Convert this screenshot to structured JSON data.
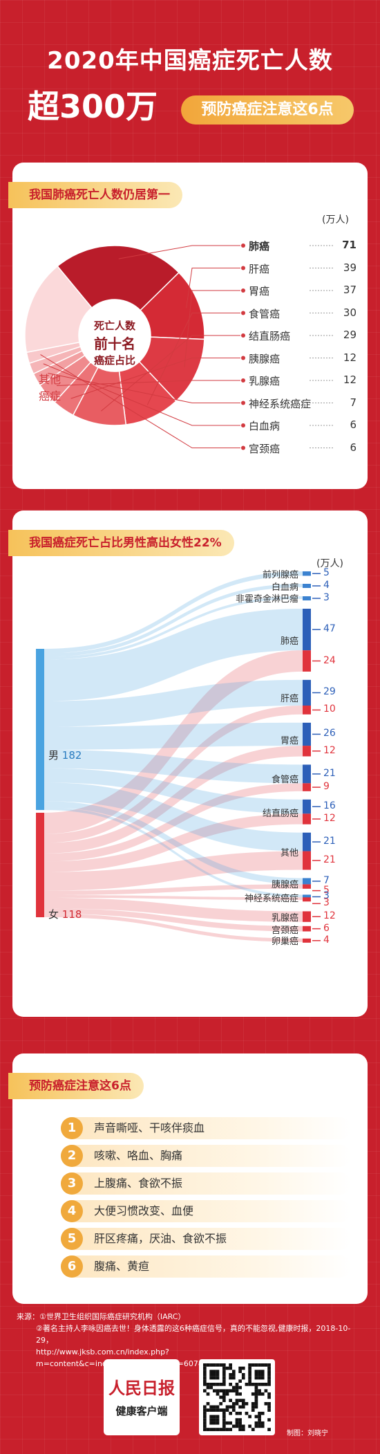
{
  "header": {
    "line1": "2020年中国癌症死亡人数",
    "line2": "超300万",
    "pill": "预防癌症注意这6点"
  },
  "section1": {
    "title": "我国肺癌死亡人数仍居第一",
    "unit": "(万人)",
    "center_lines": [
      "死亡人数",
      "前十名",
      "癌症占比"
    ],
    "other_label": [
      "其他",
      "癌症"
    ],
    "items": [
      {
        "name": "肺癌",
        "value": "71",
        "color": "#b91c2a"
      },
      {
        "name": "肝癌",
        "value": "39",
        "color": "#d42a35"
      },
      {
        "name": "胃癌",
        "value": "37",
        "color": "#dd3a44"
      },
      {
        "name": "食管癌",
        "value": "30",
        "color": "#e5474f"
      },
      {
        "name": "结直肠癌",
        "value": "29",
        "color": "#e85d62"
      },
      {
        "name": "胰腺癌",
        "value": "12",
        "color": "#ec7377"
      },
      {
        "name": "乳腺癌",
        "value": "12",
        "color": "#ef8a8d"
      },
      {
        "name": "神经系统癌症",
        "value": "7",
        "color": "#f2a0a2"
      },
      {
        "name": "白血病",
        "value": "6",
        "color": "#f5b5b7"
      },
      {
        "name": "宫颈癌",
        "value": "6",
        "color": "#f8c8ca"
      }
    ],
    "other_color": "#fbd9da"
  },
  "section2": {
    "title": "我国癌症死亡占比男性高出女性22%",
    "unit": "(万人)",
    "male_label": "男",
    "male_value": "182",
    "female_label": "女",
    "female_value": "118",
    "male_color": "#4aa3e0",
    "female_color": "#e0333c",
    "targets": [
      {
        "name": "前列腺癌",
        "male": "5",
        "female": ""
      },
      {
        "name": "白血病",
        "male": "4",
        "female": ""
      },
      {
        "name": "非霍奇金淋巴瘤",
        "male": "3",
        "female": ""
      },
      {
        "name": "肺癌",
        "male": "47",
        "female": "24"
      },
      {
        "name": "肝癌",
        "male": "29",
        "female": "10"
      },
      {
        "name": "胃癌",
        "male": "26",
        "female": "12"
      },
      {
        "name": "食管癌",
        "male": "21",
        "female": "9"
      },
      {
        "name": "结直肠癌",
        "male": "16",
        "female": "12"
      },
      {
        "name": "其他",
        "male": "21",
        "female": "21"
      },
      {
        "name": "胰腺癌",
        "male": "7",
        "female": "5"
      },
      {
        "name": "神经系统癌症",
        "male": "3",
        "female": "3"
      },
      {
        "name": "乳腺癌",
        "male": "",
        "female": "12"
      },
      {
        "name": "宫颈癌",
        "male": "",
        "female": "6"
      },
      {
        "name": "卵巢癌",
        "male": "",
        "female": "4"
      }
    ]
  },
  "section3": {
    "title": "预防癌症注意这6点",
    "tips": [
      {
        "num": "1",
        "text": "声音嘶哑、干咳伴痰血"
      },
      {
        "num": "2",
        "text": "咳嗽、咯血、胸痛"
      },
      {
        "num": "3",
        "text": "上腹痛、食欲不振"
      },
      {
        "num": "4",
        "text": "大便习惯改变、血便"
      },
      {
        "num": "5",
        "text": "肝区疼痛，厌油、食欲不振"
      },
      {
        "num": "6",
        "text": "腹痛、黄疸"
      }
    ]
  },
  "footer": {
    "line1": "来源：①世界卫生组织国际癌症研究机构（IARC）",
    "line2": "②著名主持人李咏因癌去世！身体透露的这6种癌症信号，真的不能忽视,健康时报，2018-10-29，",
    "line3": "http://www.jksb.com.cn/index.php?m=content&c=index&a=show&catid=607&id=152422",
    "logo_text": "人民日报",
    "logo_sub": "健康客户端",
    "credit": "制图：刘晓宁"
  }
}
